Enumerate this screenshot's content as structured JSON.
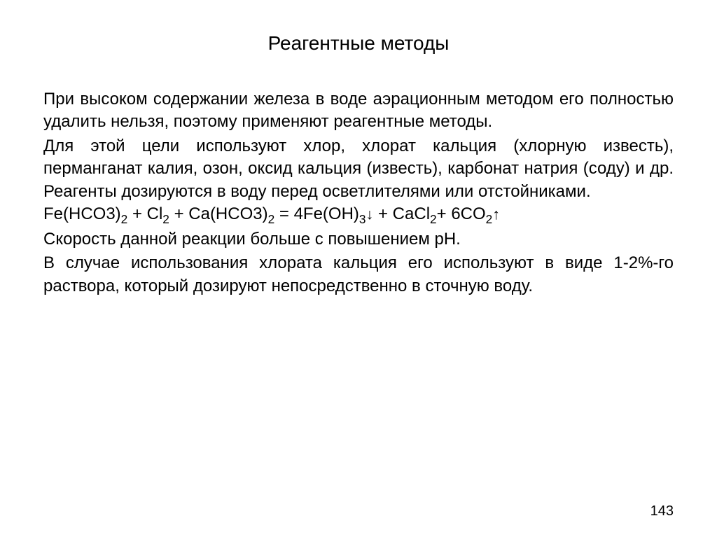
{
  "title": "Реагентные методы",
  "paragraphs": {
    "p1": "При высоком содержании железа в воде аэрационным методом его полностью удалить нельзя, поэтому применяют реагентные методы.",
    "p2": "Для этой цели используют хлор, хлорат кальция (хлорную известь), перманганат калия, озон, оксид кальция (известь), карбонат натрия (соду) и др. Реагенты дозируются в воду перед осветлителями или отстойниками.",
    "p3": "Скорость данной реакции больше с повышением рН.",
    "p4": "В случае использования хлората кальция его используют в виде 1-2%-го раствора, который дозируют непосредственно в сточную воду."
  },
  "equation": {
    "reagent1": "Fe(HCO3)",
    "reagent1_sub": "2",
    "plus1": " + Cl",
    "cl_sub": "2",
    "plus2": " + Ca(HCO3)",
    "ca_sub": "2",
    "equals": " = 4Fe(OH)",
    "feoh_sub": "3",
    "arrow_down": "↓",
    "plus3": " + CaCl",
    "cacl_sub": "2",
    "plus4": "+ 6CO",
    "co_sub": "2",
    "arrow_up": "↑"
  },
  "page_number": "143"
}
